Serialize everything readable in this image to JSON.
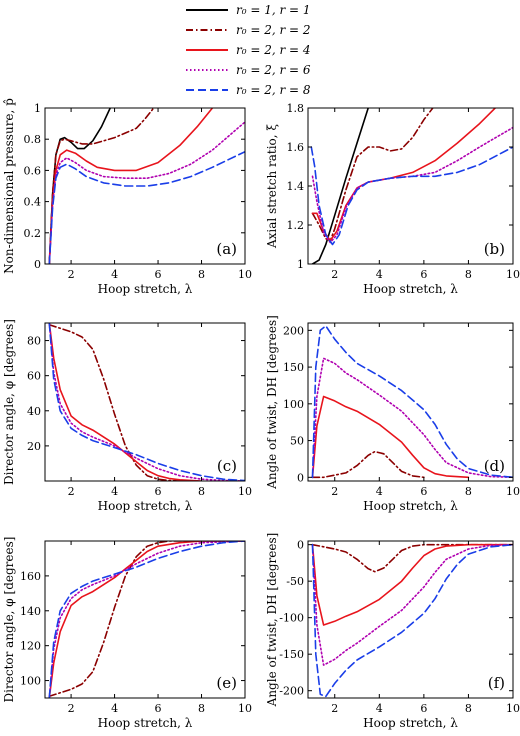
{
  "legend": {
    "placement": "top",
    "entries": [
      {
        "label": "r₀ = 1,  r = 1",
        "color": "#000000",
        "dash": "solid"
      },
      {
        "label": "r₀ = 2,  r = 2",
        "color": "#8b0000",
        "dash": "dashdot"
      },
      {
        "label": "r₀ = 2,  r = 4",
        "color": "#e8141c",
        "dash": "solid"
      },
      {
        "label": "r₀ = 2,  r = 6",
        "color": "#b000b0",
        "dash": "dotted"
      },
      {
        "label": "r₀ = 2,  r = 8",
        "color": "#1a3ee8",
        "dash": "dashed"
      }
    ]
  },
  "chart_data": [
    {
      "id": "a",
      "type": "line",
      "panel_label": "(a)",
      "xlabel": "Hoop stretch, λ",
      "ylabel": "Non-dimensional pressure, p̂",
      "xlim": [
        0.8,
        10
      ],
      "ylim": [
        0,
        1
      ],
      "xticks": [
        2,
        4,
        6,
        8,
        10
      ],
      "yticks": [
        0,
        0.2,
        0.4,
        0.6,
        0.8,
        1
      ],
      "ytick_labels": [
        "0",
        "0.2",
        "0.4",
        "0.6",
        "0.8",
        "1"
      ],
      "series": [
        {
          "legend_index": 0,
          "x": [
            1,
            1.15,
            1.3,
            1.5,
            1.7,
            2.0,
            2.3,
            2.6,
            3.0,
            3.4,
            3.8
          ],
          "y": [
            0,
            0.45,
            0.7,
            0.8,
            0.81,
            0.78,
            0.74,
            0.74,
            0.79,
            0.88,
            1.0
          ]
        },
        {
          "legend_index": 1,
          "x": [
            1,
            1.15,
            1.3,
            1.5,
            1.7,
            2.0,
            2.5,
            3.0,
            3.5,
            4.0,
            4.5,
            5.0,
            5.4,
            5.8
          ],
          "y": [
            0,
            0.45,
            0.7,
            0.79,
            0.8,
            0.79,
            0.77,
            0.77,
            0.79,
            0.81,
            0.84,
            0.87,
            0.93,
            1.0
          ]
        },
        {
          "legend_index": 2,
          "x": [
            1,
            1.15,
            1.3,
            1.5,
            1.8,
            2.2,
            2.7,
            3.2,
            4.0,
            5.0,
            6.0,
            7.0,
            7.8,
            8.5
          ],
          "y": [
            0,
            0.4,
            0.6,
            0.7,
            0.73,
            0.71,
            0.66,
            0.62,
            0.6,
            0.6,
            0.65,
            0.76,
            0.88,
            1.0
          ]
        },
        {
          "legend_index": 3,
          "x": [
            1,
            1.15,
            1.3,
            1.5,
            1.8,
            2.2,
            2.7,
            3.5,
            4.5,
            5.5,
            6.5,
            7.5,
            8.5,
            10
          ],
          "y": [
            0,
            0.38,
            0.57,
            0.65,
            0.68,
            0.65,
            0.6,
            0.56,
            0.55,
            0.55,
            0.58,
            0.64,
            0.73,
            0.91
          ]
        },
        {
          "legend_index": 4,
          "x": [
            1,
            1.15,
            1.3,
            1.5,
            1.8,
            2.2,
            2.7,
            3.5,
            4.5,
            5.5,
            6.5,
            7.5,
            8.5,
            10
          ],
          "y": [
            0,
            0.36,
            0.55,
            0.62,
            0.64,
            0.61,
            0.56,
            0.52,
            0.5,
            0.5,
            0.52,
            0.56,
            0.62,
            0.72
          ]
        }
      ]
    },
    {
      "id": "b",
      "type": "line",
      "panel_label": "(b)",
      "xlabel": "Hoop stretch, λ",
      "ylabel": "Axial stretch ratio, ξ",
      "xlim": [
        0.8,
        10
      ],
      "ylim": [
        1,
        1.8
      ],
      "xticks": [
        2,
        4,
        6,
        8,
        10
      ],
      "yticks": [
        1,
        1.2,
        1.4,
        1.6,
        1.8
      ],
      "ytick_labels": [
        "1",
        "1.2",
        "1.4",
        "1.6",
        "1.8"
      ],
      "series": [
        {
          "legend_index": 0,
          "x": [
            1,
            1.3,
            1.6,
            2.0,
            2.5,
            3.0,
            3.5
          ],
          "y": [
            1.0,
            1.02,
            1.1,
            1.25,
            1.44,
            1.62,
            1.8
          ]
        },
        {
          "legend_index": 1,
          "x": [
            1,
            1.3,
            1.6,
            1.8,
            2.0,
            2.5,
            3.0,
            3.5,
            4.0,
            4.5,
            5.0,
            5.5,
            6.0,
            6.4
          ],
          "y": [
            1.26,
            1.2,
            1.13,
            1.12,
            1.18,
            1.38,
            1.55,
            1.6,
            1.6,
            1.58,
            1.59,
            1.65,
            1.74,
            1.8
          ]
        },
        {
          "legend_index": 2,
          "x": [
            1,
            1.2,
            1.5,
            1.8,
            2.1,
            2.5,
            3.0,
            3.5,
            4.5,
            5.5,
            6.5,
            7.5,
            8.5,
            9.2
          ],
          "y": [
            1.26,
            1.26,
            1.17,
            1.12,
            1.17,
            1.3,
            1.39,
            1.42,
            1.44,
            1.47,
            1.53,
            1.62,
            1.72,
            1.8
          ]
        },
        {
          "legend_index": 3,
          "x": [
            1,
            1.2,
            1.5,
            1.8,
            2.1,
            2.5,
            3.0,
            3.5,
            4.5,
            5.5,
            6.5,
            7.5,
            8.5,
            10
          ],
          "y": [
            1.45,
            1.32,
            1.16,
            1.11,
            1.15,
            1.29,
            1.39,
            1.42,
            1.44,
            1.45,
            1.47,
            1.53,
            1.6,
            1.7
          ]
        },
        {
          "legend_index": 4,
          "x": [
            0.95,
            1.1,
            1.3,
            1.6,
            1.9,
            2.2,
            2.6,
            3.0,
            3.5,
            4.5,
            5.5,
            6.5,
            7.5,
            8.5,
            10
          ],
          "y": [
            1.6,
            1.5,
            1.3,
            1.15,
            1.1,
            1.15,
            1.3,
            1.38,
            1.42,
            1.44,
            1.45,
            1.45,
            1.47,
            1.51,
            1.6
          ]
        }
      ]
    },
    {
      "id": "c",
      "type": "line",
      "panel_label": "(c)",
      "xlabel": "Hoop stretch, λ",
      "ylabel": "Director angle, φ [degrees]",
      "xlim": [
        0.8,
        10
      ],
      "ylim": [
        0,
        90
      ],
      "xticks": [
        2,
        4,
        6,
        8,
        10
      ],
      "yticks": [
        20,
        40,
        60,
        80
      ],
      "ytick_labels": [
        "20",
        "40",
        "60",
        "80"
      ],
      "series": [
        {
          "legend_index": 1,
          "x": [
            1,
            1.5,
            2.0,
            2.5,
            3.0,
            3.5,
            4.0,
            4.5,
            5.0,
            5.5,
            6.0,
            6.5,
            7.0
          ],
          "y": [
            89,
            87,
            85,
            82,
            75,
            58,
            38,
            20,
            9,
            3,
            1,
            0.3,
            0
          ]
        },
        {
          "legend_index": 2,
          "x": [
            1,
            1.2,
            1.5,
            2.0,
            2.5,
            3.0,
            3.5,
            4.0,
            4.5,
            5.0,
            5.5,
            6.0,
            6.5,
            7.0,
            8.0
          ],
          "y": [
            90,
            70,
            52,
            37,
            32,
            29,
            25,
            21,
            16,
            11,
            6,
            3,
            1.5,
            0.7,
            0
          ]
        },
        {
          "legend_index": 3,
          "x": [
            1,
            1.2,
            1.5,
            2.0,
            2.5,
            3.0,
            4.0,
            5.0,
            6.0,
            7.0,
            8.0,
            9.0,
            10
          ],
          "y": [
            90,
            62,
            44,
            33,
            28,
            25,
            20,
            13,
            7,
            3,
            1,
            0.3,
            0
          ]
        },
        {
          "legend_index": 4,
          "x": [
            1,
            1.2,
            1.5,
            2.0,
            2.5,
            3.0,
            4.0,
            5.0,
            6.0,
            7.0,
            8.0,
            9.0,
            10
          ],
          "y": [
            90,
            58,
            40,
            30,
            26,
            23,
            19,
            15,
            10,
            6,
            3,
            1,
            0.3
          ]
        }
      ]
    },
    {
      "id": "d",
      "type": "line",
      "panel_label": "(d)",
      "xlabel": "Hoop stretch, λ",
      "ylabel": "Angle of twist, DH [degrees]",
      "xlim": [
        0.8,
        10
      ],
      "ylim": [
        -5,
        210
      ],
      "xticks": [
        2,
        4,
        6,
        8,
        10
      ],
      "yticks": [
        0,
        50,
        100,
        150,
        200
      ],
      "ytick_labels": [
        "0",
        "50",
        "100",
        "150",
        "200"
      ],
      "series": [
        {
          "legend_index": 1,
          "x": [
            1,
            1.5,
            2.0,
            2.5,
            3.0,
            3.5,
            3.8,
            4.2,
            4.6,
            5.0,
            5.5,
            6.0
          ],
          "y": [
            0,
            0,
            3,
            6,
            16,
            30,
            35,
            32,
            20,
            8,
            2,
            0
          ]
        },
        {
          "legend_index": 2,
          "x": [
            1,
            1.2,
            1.5,
            2.0,
            2.5,
            3.0,
            4.0,
            5.0,
            5.5,
            6.0,
            6.5,
            7.0,
            8.0
          ],
          "y": [
            0,
            70,
            110,
            104,
            96,
            90,
            72,
            48,
            30,
            13,
            5,
            2,
            0
          ]
        },
        {
          "legend_index": 3,
          "x": [
            1,
            1.2,
            1.5,
            2.0,
            2.5,
            3.0,
            4.0,
            5.0,
            6.0,
            6.5,
            7.0,
            8.0,
            9.0,
            10
          ],
          "y": [
            0,
            110,
            162,
            155,
            142,
            133,
            112,
            90,
            58,
            38,
            20,
            6,
            1,
            0
          ]
        },
        {
          "legend_index": 4,
          "x": [
            1,
            1.15,
            1.35,
            1.6,
            2.0,
            2.5,
            3.0,
            4.0,
            5.0,
            6.0,
            6.5,
            7.0,
            7.5,
            8.0,
            9.0,
            10
          ],
          "y": [
            0,
            150,
            200,
            206,
            188,
            170,
            155,
            138,
            118,
            92,
            72,
            45,
            25,
            12,
            3,
            0
          ]
        }
      ]
    },
    {
      "id": "e",
      "type": "line",
      "panel_label": "(e)",
      "xlabel": "Hoop stretch, λ",
      "ylabel": "Director angle, φ [degrees]",
      "xlim": [
        0.8,
        10
      ],
      "ylim": [
        90,
        180
      ],
      "xticks": [
        2,
        4,
        6,
        8,
        10
      ],
      "yticks": [
        100,
        120,
        140,
        160
      ],
      "ytick_labels": [
        "100",
        "120",
        "140",
        "160"
      ],
      "series": [
        {
          "legend_index": 1,
          "x": [
            1,
            1.5,
            2.0,
            2.5,
            3.0,
            3.5,
            4.0,
            4.5,
            5.0,
            5.5,
            6.0,
            6.5,
            7.0,
            8.0,
            10
          ],
          "y": [
            91,
            93,
            95,
            98,
            105,
            122,
            142,
            160,
            171,
            177,
            179,
            180,
            180,
            180,
            180
          ]
        },
        {
          "legend_index": 2,
          "x": [
            1,
            1.2,
            1.5,
            2.0,
            2.5,
            3.0,
            3.5,
            4.0,
            4.5,
            5.0,
            5.5,
            6.0,
            7.0,
            8.0,
            10
          ],
          "y": [
            90,
            110,
            128,
            143,
            148,
            151,
            155,
            159,
            164,
            169,
            174,
            177,
            179,
            180,
            180
          ]
        },
        {
          "legend_index": 3,
          "x": [
            1,
            1.2,
            1.5,
            2.0,
            2.5,
            3.0,
            4.0,
            5.0,
            6.0,
            7.0,
            8.0,
            10
          ],
          "y": [
            90,
            118,
            136,
            147,
            152,
            155,
            160,
            167,
            173,
            177,
            179,
            180
          ]
        },
        {
          "legend_index": 4,
          "x": [
            1,
            1.2,
            1.5,
            2.0,
            2.5,
            3.0,
            4.0,
            5.0,
            6.0,
            7.0,
            8.0,
            9.0,
            10
          ],
          "y": [
            90,
            122,
            140,
            150,
            154,
            157,
            161,
            165,
            170,
            174,
            177,
            179,
            180
          ]
        }
      ]
    },
    {
      "id": "f",
      "type": "line",
      "panel_label": "(f)",
      "xlabel": "Hoop stretch, λ",
      "ylabel": "Angle of twist, DH [degrees]",
      "xlim": [
        0.8,
        10
      ],
      "ylim": [
        -210,
        5
      ],
      "xticks": [
        2,
        4,
        6,
        8,
        10
      ],
      "yticks": [
        -200,
        -150,
        -100,
        -50,
        0
      ],
      "ytick_labels": [
        "-200",
        "-150",
        "-100",
        "-50",
        "0"
      ],
      "series": [
        {
          "legend_index": 1,
          "x": [
            1,
            1.5,
            2.0,
            2.5,
            3.0,
            3.5,
            3.8,
            4.2,
            4.6,
            5.0,
            5.5,
            6.0,
            7.0,
            10
          ],
          "y": [
            0,
            -3,
            -6,
            -10,
            -20,
            -33,
            -37,
            -32,
            -20,
            -8,
            -2,
            0,
            0,
            0
          ]
        },
        {
          "legend_index": 2,
          "x": [
            1,
            1.2,
            1.5,
            2.0,
            2.5,
            3.0,
            4.0,
            5.0,
            5.5,
            6.0,
            6.5,
            7.0,
            8.0,
            10
          ],
          "y": [
            0,
            -70,
            -110,
            -105,
            -98,
            -92,
            -75,
            -50,
            -32,
            -15,
            -6,
            -2,
            0,
            0
          ]
        },
        {
          "legend_index": 3,
          "x": [
            1,
            1.2,
            1.5,
            2.0,
            2.5,
            3.0,
            4.0,
            5.0,
            6.0,
            6.5,
            7.0,
            8.0,
            9.0,
            10
          ],
          "y": [
            0,
            -110,
            -165,
            -157,
            -145,
            -135,
            -112,
            -90,
            -58,
            -38,
            -20,
            -6,
            -1,
            0
          ]
        },
        {
          "legend_index": 4,
          "x": [
            1,
            1.15,
            1.35,
            1.6,
            2.0,
            2.5,
            3.0,
            4.0,
            5.0,
            6.0,
            6.5,
            7.0,
            7.5,
            8.0,
            9.0,
            10
          ],
          "y": [
            0,
            -150,
            -205,
            -208,
            -190,
            -172,
            -158,
            -140,
            -120,
            -94,
            -74,
            -47,
            -27,
            -13,
            -3,
            0
          ]
        }
      ]
    }
  ]
}
